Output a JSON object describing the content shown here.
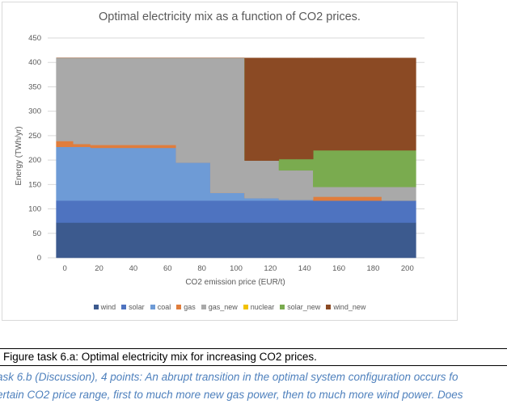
{
  "chart_data": {
    "type": "area",
    "title": "Optimal electricity mix as a function of CO2 prices.",
    "xlabel": "CO2 emission price (EUR/t)",
    "ylabel": "Energy (TWh/yr)",
    "ylim": [
      0,
      450
    ],
    "xlim": [
      -10,
      210
    ],
    "y_ticks": [
      0,
      50,
      100,
      150,
      200,
      250,
      300,
      350,
      400,
      450
    ],
    "x_ticks": [
      0,
      20,
      40,
      60,
      80,
      100,
      120,
      140,
      160,
      180,
      200
    ],
    "grid": "horizontal",
    "legend_position": "bottom",
    "x": [
      0,
      10,
      20,
      30,
      40,
      50,
      60,
      70,
      80,
      90,
      100,
      110,
      120,
      130,
      140,
      150,
      160,
      170,
      180,
      190,
      200
    ],
    "series": [
      {
        "name": "wind",
        "color": "#3c5a8e",
        "values": [
          72,
          72,
          72,
          72,
          72,
          72,
          72,
          72,
          72,
          72,
          72,
          72,
          72,
          72,
          72,
          72,
          72,
          72,
          72,
          72,
          72
        ]
      },
      {
        "name": "solar",
        "color": "#4e73c0",
        "values": [
          45,
          45,
          45,
          45,
          45,
          45,
          45,
          45,
          45,
          45,
          45,
          45,
          45,
          45,
          45,
          45,
          45,
          45,
          45,
          45,
          45
        ]
      },
      {
        "name": "coal",
        "color": "#6e9bd6",
        "values": [
          110,
          110,
          108,
          108,
          108,
          108,
          108,
          78,
          78,
          16,
          16,
          5,
          5,
          2,
          2,
          0,
          0,
          0,
          0,
          0,
          0
        ]
      },
      {
        "name": "gas",
        "color": "#e07d3c",
        "values": [
          12,
          6,
          6,
          6,
          6,
          6,
          6,
          0,
          0,
          0,
          0,
          0,
          0,
          0,
          0,
          8,
          8,
          8,
          8,
          0,
          0
        ]
      },
      {
        "name": "gas_new",
        "color": "#a9a9a9",
        "values": [
          170,
          176,
          178,
          178,
          178,
          178,
          178,
          214,
          214,
          276,
          276,
          77,
          77,
          60,
          60,
          20,
          20,
          20,
          20,
          28,
          28
        ]
      },
      {
        "name": "nuclear",
        "color": "#f2c200",
        "values": [
          0,
          0,
          0,
          0,
          0,
          0,
          0,
          0,
          0,
          0,
          0,
          0,
          0,
          0,
          0,
          0,
          0,
          0,
          0,
          0,
          0
        ]
      },
      {
        "name": "solar_new",
        "color": "#7aab4f",
        "values": [
          0,
          0,
          0,
          0,
          0,
          0,
          0,
          0,
          0,
          0,
          0,
          0,
          0,
          23,
          23,
          75,
          75,
          75,
          75,
          75,
          75
        ]
      },
      {
        "name": "wind_new",
        "color": "#8b4a24",
        "values": [
          0,
          0,
          0,
          0,
          0,
          0,
          0,
          0,
          0,
          0,
          0,
          210,
          210,
          207,
          207,
          189,
          189,
          189,
          189,
          189,
          189
        ]
      }
    ]
  },
  "caption": "Figure task 6.a: Optimal electricity mix for increasing CO2 prices.",
  "task_text": {
    "line1": "ask 6.b (Discussion), 4 points: An abrupt transition in the optimal system configuration occurs fo",
    "line2": "ertain CO2 price range, first to much more new gas power, then to much more wind power. Does"
  }
}
